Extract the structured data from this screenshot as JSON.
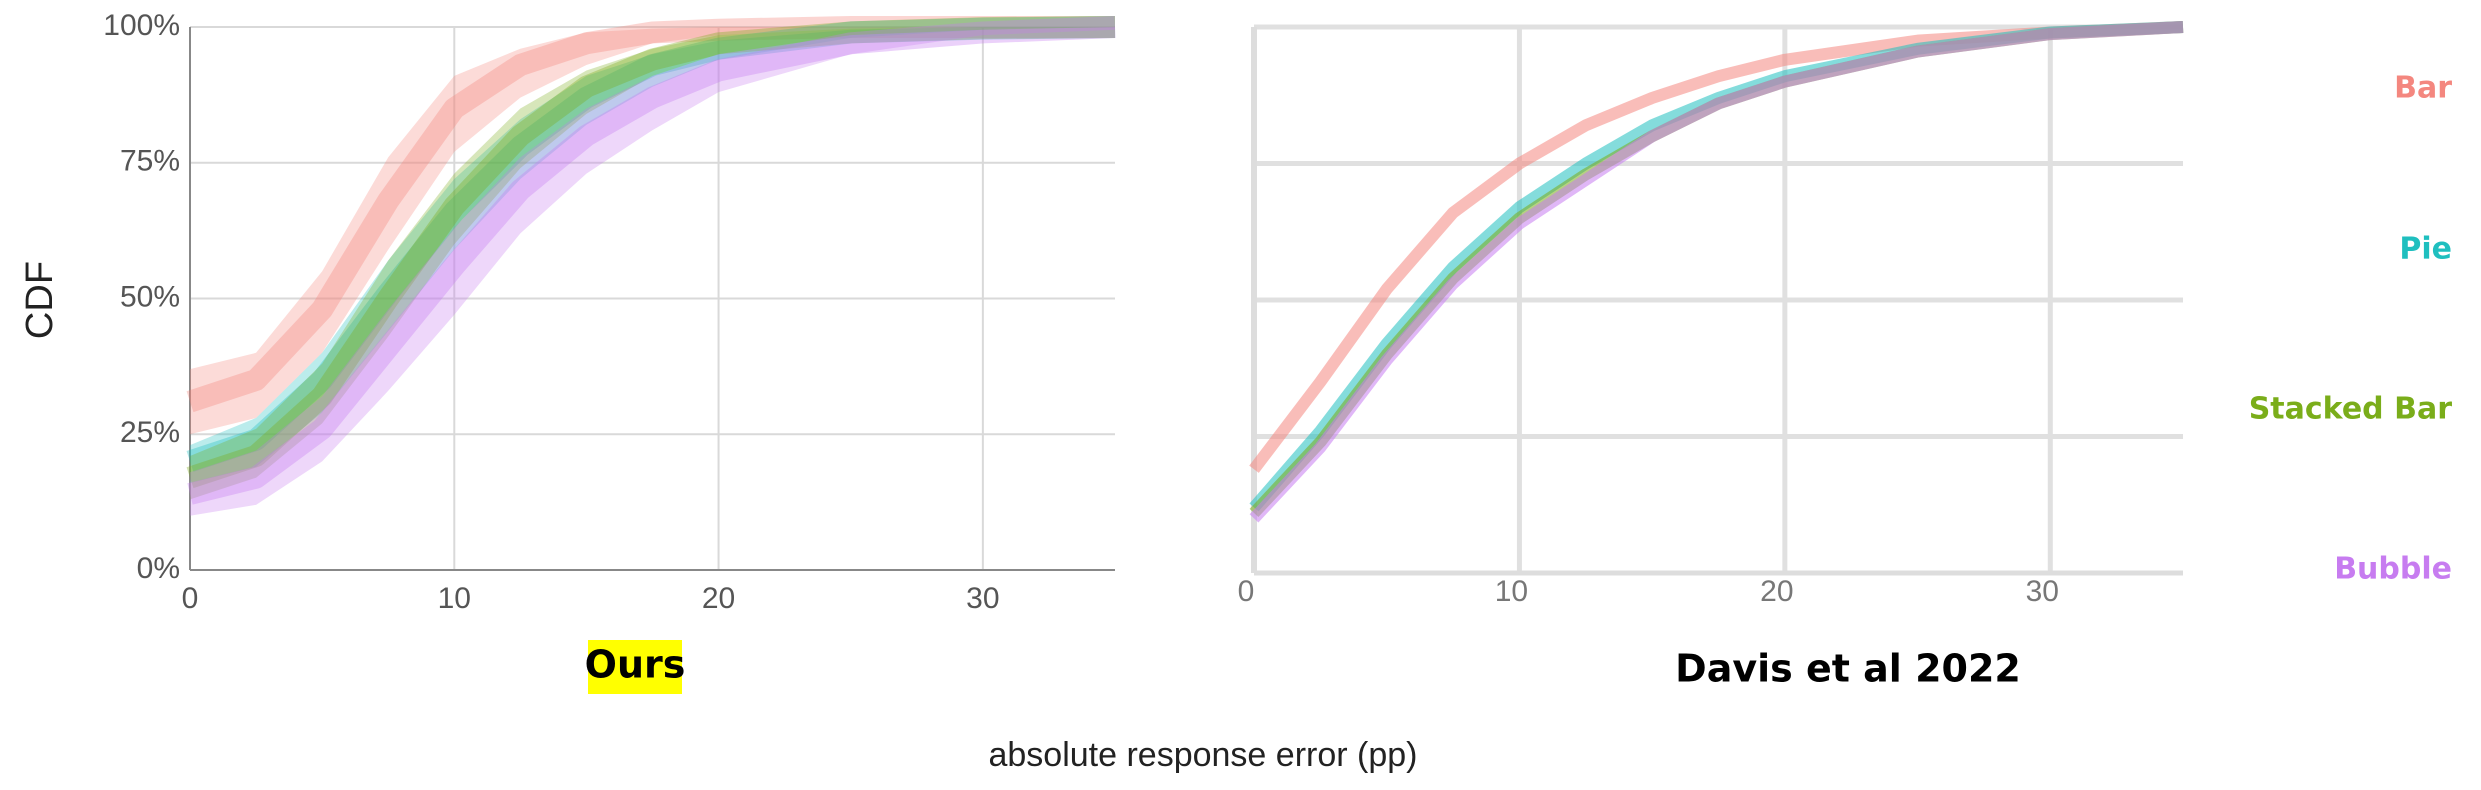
{
  "chart_data": [
    {
      "type": "band",
      "title": "Ours",
      "ylabel": "CDF",
      "xlabel": "absolute response error (pp)",
      "x": [
        0,
        2.5,
        5,
        7.5,
        10,
        12.5,
        15,
        17.5,
        20,
        25,
        30,
        35
      ],
      "xlim": [
        0,
        35
      ],
      "xticks": [
        0,
        10,
        20,
        30
      ],
      "ylim": [
        0,
        100
      ],
      "yticks": [
        {
          "value": 0,
          "label": "0%"
        },
        {
          "value": 25,
          "label": "25%"
        },
        {
          "value": 50,
          "label": "50%"
        },
        {
          "value": 75,
          "label": "75%"
        },
        {
          "value": 100,
          "label": "100%"
        }
      ],
      "grid": true,
      "series": [
        {
          "name": "Bar",
          "color": "#f4877f",
          "values": [
            31,
            35,
            48,
            68,
            85,
            93,
            97,
            99,
            99.5,
            100,
            100,
            100
          ],
          "lower": [
            25,
            28,
            40,
            59,
            77,
            87,
            93,
            97,
            98.5,
            99.7,
            100,
            100
          ],
          "upper": [
            37,
            40,
            55,
            76,
            91,
            96,
            99,
            99.7,
            100,
            100,
            100,
            100
          ]
        },
        {
          "name": "Pie",
          "color": "#1fbfbf",
          "values": [
            20,
            24,
            35,
            51,
            66,
            78,
            87,
            93,
            96,
            99,
            99.7,
            100
          ],
          "lower": [
            16,
            19,
            29,
            44,
            59,
            72,
            82,
            89,
            94,
            98,
            99.5,
            100
          ],
          "upper": [
            23,
            28,
            40,
            57,
            72,
            83,
            91,
            95,
            97.5,
            99.5,
            100,
            100
          ]
        },
        {
          "name": "Stacked Bar",
          "color": "#7aad1a",
          "values": [
            17,
            21,
            32,
            50,
            67,
            80,
            89,
            94,
            97,
            99,
            99.8,
            100
          ],
          "lower": [
            13,
            17,
            27,
            43,
            60,
            74,
            84,
            91,
            95,
            98.5,
            99.5,
            100
          ],
          "upper": [
            21,
            26,
            38,
            57,
            73,
            85,
            92,
            96,
            98.5,
            99.7,
            100,
            100
          ]
        },
        {
          "name": "Bubble",
          "color": "#c77cf0",
          "values": [
            14,
            17,
            26,
            41,
            56,
            70,
            80,
            87,
            92,
            97,
            99,
            100
          ],
          "lower": [
            10,
            12,
            20,
            33,
            47,
            62,
            73,
            81,
            88,
            95,
            98.5,
            99.5
          ],
          "upper": [
            18,
            22,
            32,
            48,
            63,
            76,
            85,
            91,
            95,
            98.5,
            99.5,
            100
          ]
        }
      ]
    },
    {
      "type": "line",
      "title": "Davis et al 2022",
      "x": [
        0,
        2.5,
        5,
        7.5,
        10,
        12.5,
        15,
        17.5,
        20,
        25,
        30,
        35
      ],
      "xlim": [
        0,
        35
      ],
      "xticks": [
        0,
        10,
        20,
        30
      ],
      "ylim": [
        0,
        100
      ],
      "yticks": [
        0,
        25,
        50,
        75,
        100
      ],
      "grid": true,
      "legend": "right",
      "series": [
        {
          "name": "Bar",
          "color": "#f4877f",
          "values": [
            19,
            35,
            52,
            66,
            75,
            82,
            87,
            91,
            94,
            97.5,
            99,
            100
          ]
        },
        {
          "name": "Pie",
          "color": "#1fbfbf",
          "values": [
            12,
            26,
            42,
            56,
            67,
            75,
            82,
            87,
            91,
            96,
            99,
            100
          ]
        },
        {
          "name": "Stacked Bar",
          "color": "#7aad1a",
          "values": [
            11,
            24,
            40,
            54,
            65,
            73,
            80,
            86,
            90,
            95.5,
            98.7,
            100
          ]
        },
        {
          "name": "Bubble",
          "color": "#c77cf0",
          "values": [
            10,
            23,
            39,
            53,
            64,
            72,
            80,
            86,
            90,
            95.5,
            98.7,
            100
          ]
        }
      ]
    }
  ]
}
